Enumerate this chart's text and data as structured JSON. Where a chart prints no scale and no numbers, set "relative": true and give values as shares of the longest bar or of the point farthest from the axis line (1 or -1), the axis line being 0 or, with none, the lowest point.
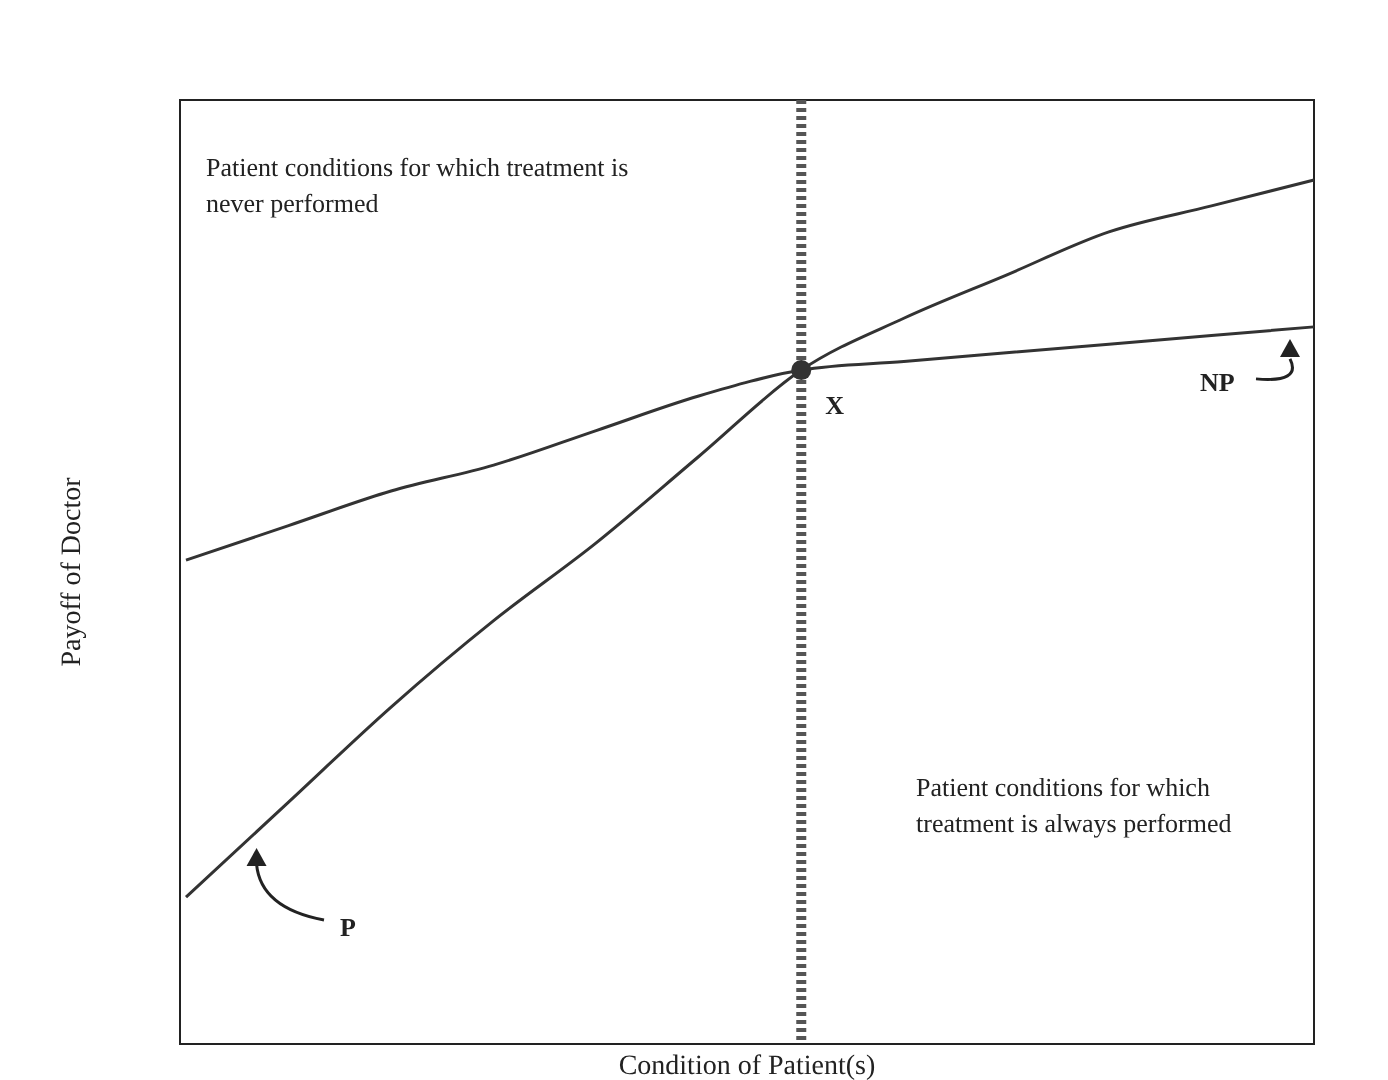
{
  "chart_data": {
    "type": "line",
    "relative": true,
    "xlabel": "Condition of Patient(s)",
    "ylabel": "Payoff of Doctor",
    "categories": [
      null,
      null,
      null,
      null,
      null,
      null,
      null,
      null,
      null,
      null,
      null,
      null
    ],
    "series": [
      {
        "name": "P",
        "color": "#333333",
        "values": [
          0.17,
          0.28,
          0.39,
          0.49,
          0.58,
          0.68,
          0.78,
          0.84,
          0.89,
          0.94,
          0.97,
          1
        ]
      },
      {
        "name": "NP",
        "color": "#333333",
        "values": [
          0.56,
          0.6,
          0.64,
          0.67,
          0.71,
          0.75,
          0.78,
          0.79,
          0.8,
          0.81,
          0.82,
          0.83
        ]
      }
    ],
    "annotations": [
      "Patient conditions for which treatment is never performed",
      "Patient conditions for which treatment is always performed",
      {
        "text": "X",
        "y": 0.78
      }
    ],
    "marker": "none",
    "line_style": "solid"
  }
}
